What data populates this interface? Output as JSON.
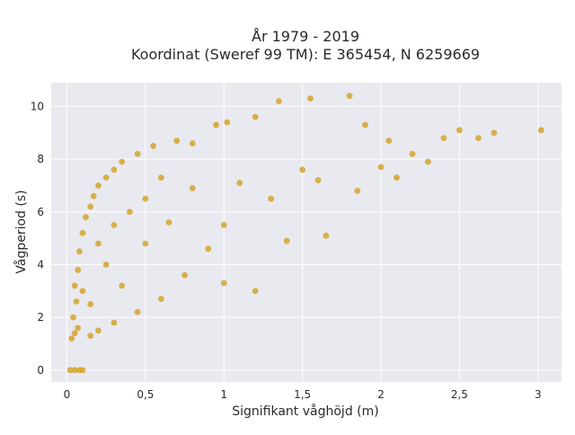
{
  "chart_data": {
    "type": "scatter",
    "title_line1": "År 1979 - 2019",
    "title_line2": "Koordinat (Sweref 99 TM): E 365454, N 6259669",
    "xlabel": "Signifikant våghöjd (m)",
    "ylabel": "Vågperiod (s)",
    "xlim": [
      -0.1,
      3.15
    ],
    "ylim": [
      -0.45,
      10.9
    ],
    "xticks": [
      {
        "value": 0,
        "label": "0"
      },
      {
        "value": 0.5,
        "label": "0,5"
      },
      {
        "value": 1,
        "label": "1"
      },
      {
        "value": 1.5,
        "label": "1,5"
      },
      {
        "value": 2,
        "label": "2"
      },
      {
        "value": 2.5,
        "label": "2,5"
      },
      {
        "value": 3,
        "label": "3"
      }
    ],
    "yticks": [
      {
        "value": 0,
        "label": "0"
      },
      {
        "value": 2,
        "label": "2"
      },
      {
        "value": 4,
        "label": "4"
      },
      {
        "value": 6,
        "label": "6"
      },
      {
        "value": 8,
        "label": "8"
      },
      {
        "value": 10,
        "label": "10"
      }
    ],
    "marker_color": "#D4A52B",
    "plot_background": "#E9E9F0",
    "grid": true,
    "legend": "none",
    "series": [
      {
        "points": [
          {
            "x": 0.02,
            "y": 0.0
          },
          {
            "x": 0.05,
            "y": 0.0
          },
          {
            "x": 0.08,
            "y": 0.0
          },
          {
            "x": 0.1,
            "y": 0.0
          },
          {
            "x": 0.03,
            "y": 1.2
          },
          {
            "x": 0.05,
            "y": 1.4
          },
          {
            "x": 0.07,
            "y": 1.6
          },
          {
            "x": 0.04,
            "y": 2.0
          },
          {
            "x": 0.06,
            "y": 2.6
          },
          {
            "x": 0.05,
            "y": 3.2
          },
          {
            "x": 0.07,
            "y": 3.8
          },
          {
            "x": 0.08,
            "y": 4.5
          },
          {
            "x": 0.1,
            "y": 5.2
          },
          {
            "x": 0.12,
            "y": 5.8
          },
          {
            "x": 0.15,
            "y": 6.2
          },
          {
            "x": 0.17,
            "y": 6.6
          },
          {
            "x": 0.2,
            "y": 7.0
          },
          {
            "x": 0.25,
            "y": 7.3
          },
          {
            "x": 0.3,
            "y": 7.6
          },
          {
            "x": 0.35,
            "y": 7.9
          },
          {
            "x": 0.45,
            "y": 8.2
          },
          {
            "x": 0.55,
            "y": 8.5
          },
          {
            "x": 0.7,
            "y": 8.7
          },
          {
            "x": 0.8,
            "y": 8.6
          },
          {
            "x": 0.95,
            "y": 9.3
          },
          {
            "x": 1.02,
            "y": 9.4
          },
          {
            "x": 1.2,
            "y": 9.6
          },
          {
            "x": 1.35,
            "y": 10.2
          },
          {
            "x": 1.55,
            "y": 10.3
          },
          {
            "x": 1.8,
            "y": 10.4
          },
          {
            "x": 1.9,
            "y": 9.3
          },
          {
            "x": 2.05,
            "y": 8.7
          },
          {
            "x": 2.2,
            "y": 8.2
          },
          {
            "x": 2.4,
            "y": 8.8
          },
          {
            "x": 2.5,
            "y": 9.1
          },
          {
            "x": 2.62,
            "y": 8.8
          },
          {
            "x": 2.72,
            "y": 9.0
          },
          {
            "x": 3.02,
            "y": 9.1
          },
          {
            "x": 2.3,
            "y": 7.9
          },
          {
            "x": 2.0,
            "y": 7.7
          },
          {
            "x": 1.6,
            "y": 7.2
          },
          {
            "x": 1.3,
            "y": 6.5
          },
          {
            "x": 1.0,
            "y": 5.5
          },
          {
            "x": 0.9,
            "y": 4.6
          },
          {
            "x": 0.75,
            "y": 3.6
          },
          {
            "x": 0.6,
            "y": 2.7
          },
          {
            "x": 0.45,
            "y": 2.2
          },
          {
            "x": 0.3,
            "y": 1.8
          },
          {
            "x": 0.2,
            "y": 1.5
          },
          {
            "x": 0.15,
            "y": 1.3
          },
          {
            "x": 1.2,
            "y": 3.0
          },
          {
            "x": 1.0,
            "y": 3.3
          },
          {
            "x": 1.4,
            "y": 4.9
          },
          {
            "x": 1.65,
            "y": 5.1
          },
          {
            "x": 1.85,
            "y": 6.8
          },
          {
            "x": 2.1,
            "y": 7.3
          },
          {
            "x": 0.3,
            "y": 5.5
          },
          {
            "x": 0.4,
            "y": 6.0
          },
          {
            "x": 0.5,
            "y": 6.5
          },
          {
            "x": 0.25,
            "y": 4.0
          },
          {
            "x": 0.35,
            "y": 3.2
          },
          {
            "x": 0.5,
            "y": 4.8
          },
          {
            "x": 0.65,
            "y": 5.6
          },
          {
            "x": 0.8,
            "y": 6.9
          },
          {
            "x": 1.1,
            "y": 7.1
          },
          {
            "x": 1.5,
            "y": 7.6
          },
          {
            "x": 0.15,
            "y": 2.5
          },
          {
            "x": 0.1,
            "y": 3.0
          },
          {
            "x": 0.2,
            "y": 4.8
          },
          {
            "x": 0.6,
            "y": 7.3
          }
        ]
      }
    ]
  }
}
